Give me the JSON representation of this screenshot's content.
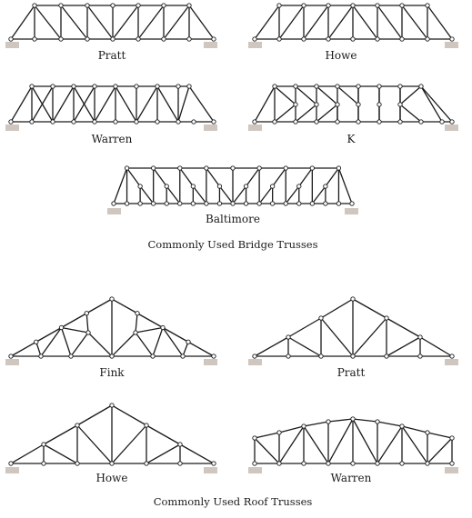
{
  "bridge_trusses": {
    "caption": "Commonly Used Bridge Trusses",
    "pratt": "Pratt",
    "howe": "Howe",
    "warren": "Warren",
    "k": "K",
    "baltimore": "Baltimore"
  },
  "roof_trusses": {
    "caption": "Commonly Used Roof Trusses",
    "fink": "Fink",
    "pratt": "Pratt",
    "howe": "Howe",
    "warren": "Warren"
  },
  "colors": {
    "member": "#1a1a1a",
    "joint_fill": "#ffffff",
    "support": "#cfc6c0"
  }
}
